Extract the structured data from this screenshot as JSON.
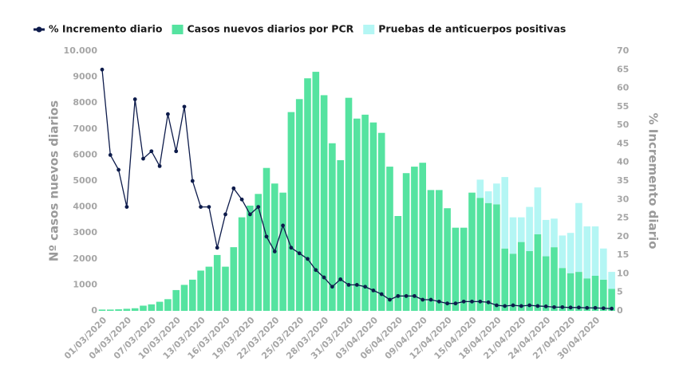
{
  "chart_data": {
    "type": "bar-line",
    "categories": [
      "01/03/2020",
      null,
      null,
      "04/03/2020",
      null,
      null,
      "07/03/2020",
      null,
      null,
      "10/03/2020",
      null,
      null,
      "13/03/2020",
      null,
      null,
      "16/03/2020",
      null,
      null,
      "19/03/2020",
      null,
      null,
      "22/03/2020",
      null,
      null,
      "25/03/2020",
      null,
      null,
      "28/03/2020",
      null,
      null,
      "31/03/2020",
      null,
      null,
      "03/04/2020",
      null,
      null,
      "06/04/2020",
      null,
      null,
      "09/04/2020",
      null,
      null,
      "12/04/2020",
      null,
      null,
      "15/04/2020",
      null,
      null,
      "18/04/2020",
      null,
      null,
      "21/04/2020",
      null,
      null,
      "24/04/2020",
      null,
      null,
      "27/04/2020",
      null,
      null,
      "30/04/2020",
      null,
      null
    ],
    "series": [
      {
        "name": "% Incremento diario",
        "type": "line",
        "axis": "y2",
        "color": "#0d1b4b",
        "values": [
          65,
          42,
          38,
          28,
          57,
          41,
          43,
          39,
          53,
          43,
          55,
          35,
          28,
          28,
          17,
          26,
          33,
          30,
          26,
          28,
          20,
          16,
          23,
          17,
          15.5,
          14,
          11,
          9,
          6.5,
          8.5,
          7,
          7,
          6.5,
          5.5,
          4.5,
          3,
          4,
          4,
          4,
          3,
          3,
          2.5,
          2,
          2,
          2.5,
          2.5,
          2.5,
          2.3,
          1.5,
          1.3,
          1.5,
          1.3,
          1.5,
          1.3,
          1.2,
          1,
          1,
          0.9,
          0.9,
          0.8,
          0.8,
          0.7,
          0.6
        ]
      },
      {
        "name": "Casos nuevos diarios por PCR",
        "type": "bar",
        "color": "#55e3a0",
        "values": [
          50,
          50,
          60,
          80,
          100,
          200,
          250,
          350,
          450,
          800,
          1000,
          1200,
          1550,
          1700,
          2150,
          1700,
          2450,
          3600,
          4050,
          4500,
          5500,
          4900,
          4550,
          7650,
          8150,
          8950,
          9200,
          8300,
          6450,
          5800,
          8200,
          7400,
          7550,
          7250,
          6850,
          5550,
          3650,
          5300,
          5550,
          5700,
          4650,
          4650,
          3950,
          3200,
          3200,
          4550,
          4350,
          4150,
          4100,
          2400,
          2200,
          2650,
          2300,
          2950,
          2100,
          2450,
          1650,
          1450,
          1500,
          1250,
          1350,
          1200,
          850
        ]
      },
      {
        "name": "Pruebas de anticuerpos positivas",
        "type": "bar",
        "color": "#b4f6f4",
        "values": [
          0,
          0,
          0,
          0,
          0,
          0,
          0,
          0,
          0,
          0,
          0,
          0,
          0,
          0,
          0,
          0,
          0,
          0,
          0,
          0,
          0,
          0,
          0,
          0,
          0,
          0,
          0,
          0,
          0,
          0,
          0,
          0,
          0,
          0,
          0,
          0,
          0,
          0,
          0,
          0,
          0,
          0,
          0,
          0,
          0,
          0,
          700,
          450,
          800,
          2750,
          1400,
          950,
          1700,
          1800,
          1400,
          1100,
          1250,
          1550,
          2650,
          2000,
          1900,
          1200,
          650
        ]
      }
    ],
    "ylabel": "Nº casos nuevos diarios",
    "y2label": "% Incremento diario",
    "ylim": [
      0,
      10000
    ],
    "yticks": [
      0,
      1000,
      2000,
      3000,
      4000,
      5000,
      6000,
      7000,
      8000,
      9000,
      {
        "value": 10000,
        "label": "10.000"
      }
    ],
    "y2lim": [
      0,
      70
    ],
    "y2ticks": [
      0,
      5,
      10,
      15,
      20,
      25,
      30,
      35,
      40,
      45,
      50,
      55,
      60,
      65,
      70
    ],
    "legend": "top-left"
  }
}
